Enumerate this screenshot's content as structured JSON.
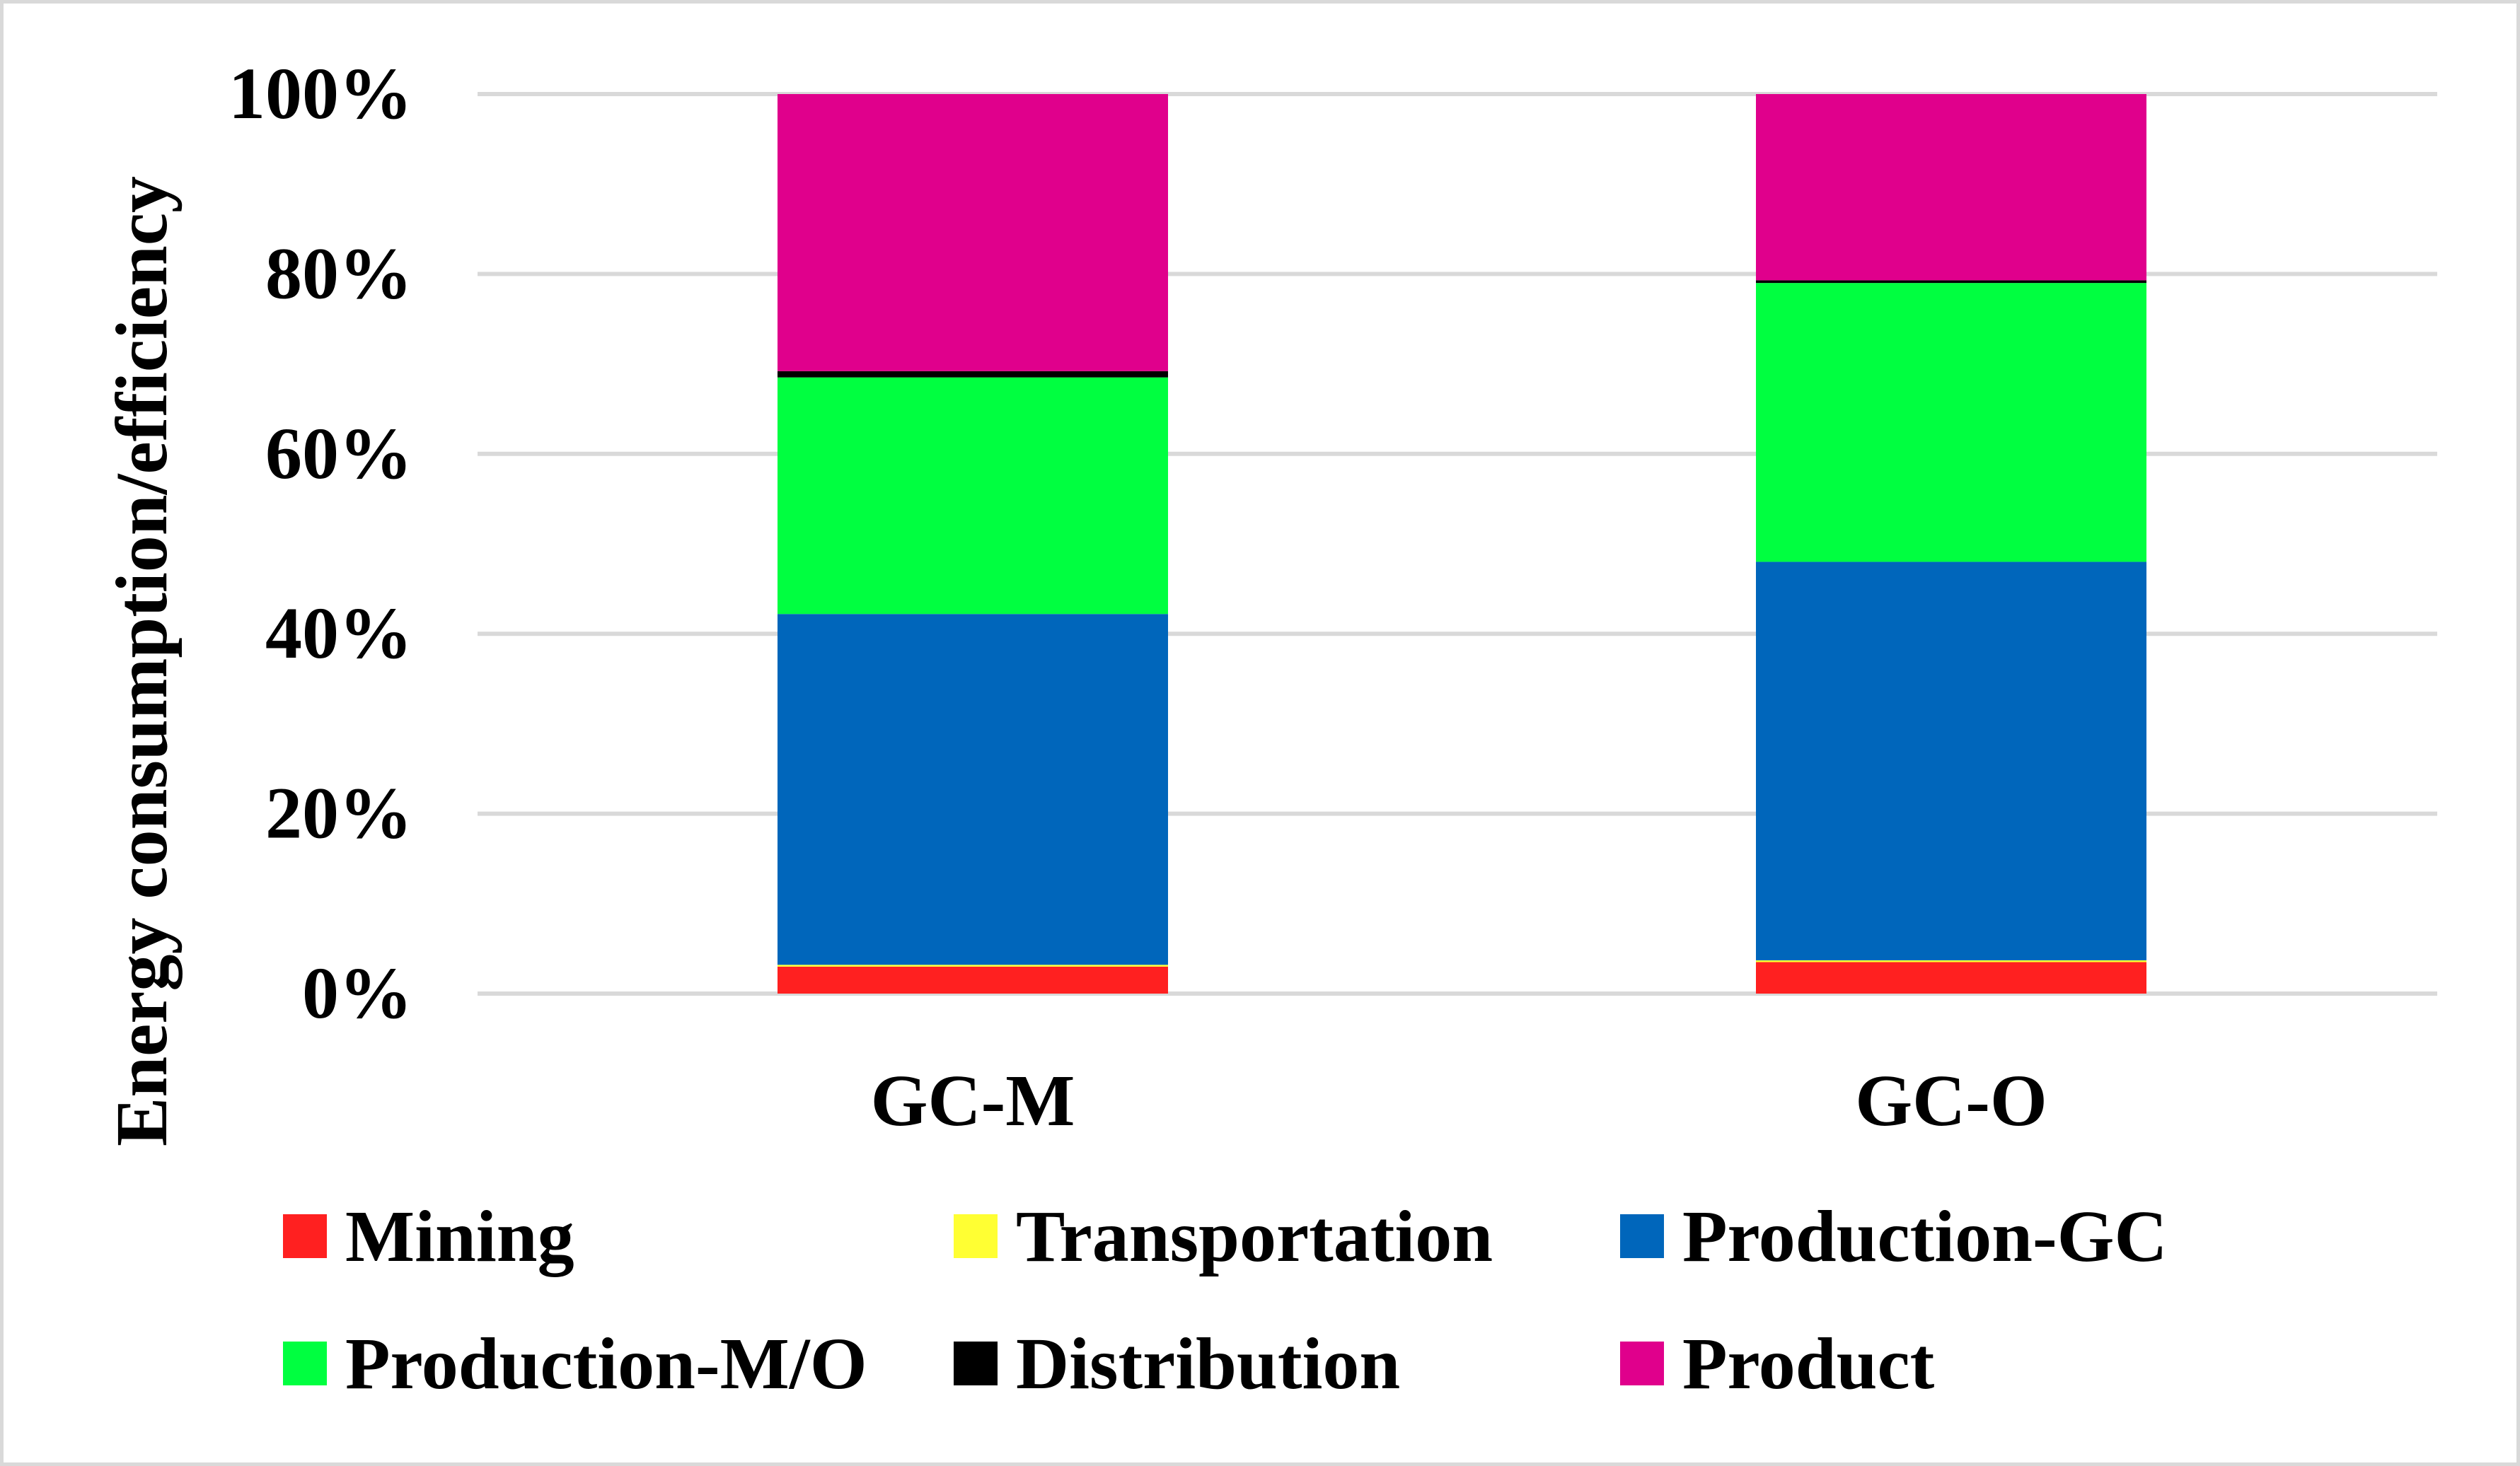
{
  "chart_data": {
    "type": "bar",
    "stacked": true,
    "title": "",
    "xlabel": "",
    "ylabel": "Energy consumption/efficiency",
    "ylim": [
      0,
      100
    ],
    "y_ticks": [
      0,
      20,
      40,
      60,
      80,
      100
    ],
    "y_tick_labels": [
      "0%",
      "20%",
      "40%",
      "60%",
      "80%",
      "100%"
    ],
    "grid": true,
    "legend_position": "bottom",
    "categories": [
      "GC-M",
      "GC-O"
    ],
    "series": [
      {
        "name": "Mining",
        "color": "#ff2020",
        "values": [
          3.0,
          3.5
        ]
      },
      {
        "name": "Transportation",
        "color": "#ffff33",
        "values": [
          0.2,
          0.2
        ]
      },
      {
        "name": "Production-GC",
        "color": "#0066bb",
        "values": [
          39.0,
          44.3
        ]
      },
      {
        "name": "Production-M/O",
        "color": "#00ff40",
        "values": [
          26.3,
          31.0
        ]
      },
      {
        "name": "Distribution",
        "color": "#000000",
        "values": [
          0.7,
          0.3
        ]
      },
      {
        "name": "Product",
        "color": "#e0008c",
        "values": [
          30.8,
          20.7
        ]
      }
    ]
  }
}
